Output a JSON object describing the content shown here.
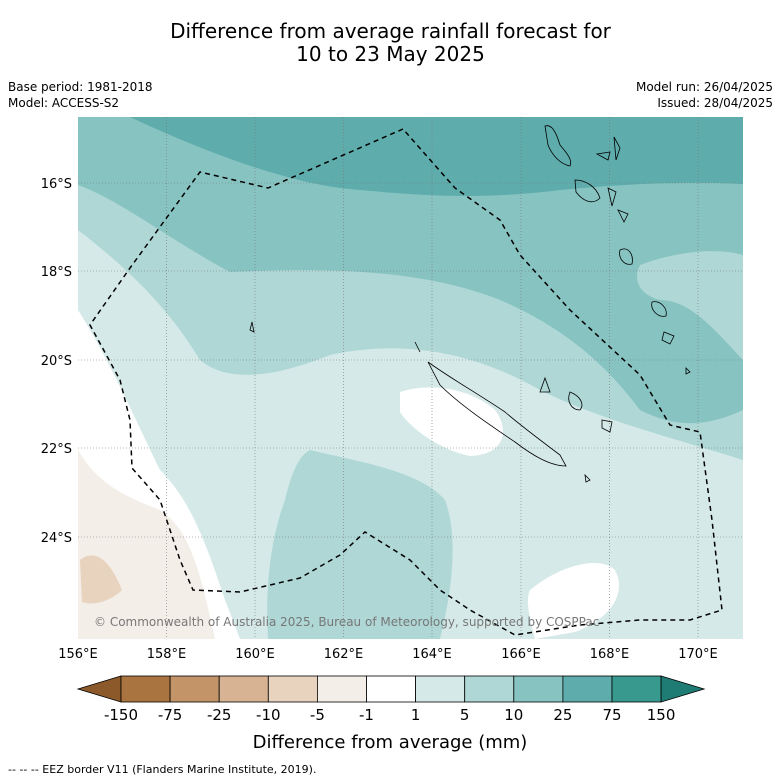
{
  "title_line1": "Difference from average rainfall forecast for",
  "title_line2": "10 to 23 May 2025",
  "base_period": "Base period: 1981-2018",
  "model": "Model: ACCESS-S2",
  "model_run": "Model run: 26/04/2025",
  "issued": "Issued: 28/04/2025",
  "copyright": "© Commonwealth of Australia 2025, Bureau of Meteorology, supported by COSPPac",
  "lon_ticks": [
    "156°E",
    "158°E",
    "160°E",
    "162°E",
    "164°E",
    "166°E",
    "168°E",
    "170°E"
  ],
  "lat_ticks": [
    "16°S",
    "18°S",
    "20°S",
    "22°S",
    "24°S"
  ],
  "colorbar": {
    "labels": [
      "-150",
      "-75",
      "-25",
      "-10",
      "-5",
      "-1",
      "1",
      "5",
      "10",
      "25",
      "75",
      "150"
    ],
    "colors": [
      "#8c5a2a",
      "#a97440",
      "#c39468",
      "#d7b394",
      "#e8d3bf",
      "#f4eee8",
      "#ffffff",
      "#d5eae8",
      "#aed7d6",
      "#86c3c1",
      "#5eacab",
      "#38998f",
      "#1f7c74"
    ],
    "title": "Difference from average (mm)"
  },
  "legend_footer": "--  --  -- EEZ border V11 (Flanders Marine Institute, 2019)."
}
